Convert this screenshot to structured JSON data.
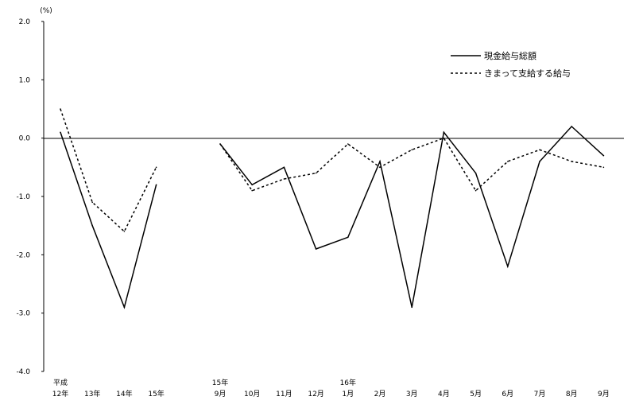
{
  "chart_data": {
    "type": "line",
    "unit_label": "(%)",
    "ylim": [
      -4.0,
      2.0
    ],
    "yticks": [
      "2.0",
      "1.0",
      "0.0",
      "-1.0",
      "-2.0",
      "-3.0",
      "-4.0"
    ],
    "ytick_values": [
      2.0,
      1.0,
      0.0,
      -1.0,
      -2.0,
      -3.0,
      -4.0
    ],
    "grid": false,
    "zero_line": true,
    "legend_position": "top-right",
    "categories": [
      {
        "top": "平成",
        "bottom": "12年"
      },
      {
        "top": "",
        "bottom": "13年"
      },
      {
        "top": "",
        "bottom": "14年"
      },
      {
        "top": "",
        "bottom": "15年"
      },
      {
        "top": "",
        "bottom": ""
      },
      {
        "top": "15年",
        "bottom": "9月"
      },
      {
        "top": "",
        "bottom": "10月"
      },
      {
        "top": "",
        "bottom": "11月"
      },
      {
        "top": "",
        "bottom": "12月"
      },
      {
        "top": "16年",
        "bottom": "1月"
      },
      {
        "top": "",
        "bottom": "2月"
      },
      {
        "top": "",
        "bottom": "3月"
      },
      {
        "top": "",
        "bottom": "4月"
      },
      {
        "top": "",
        "bottom": "5月"
      },
      {
        "top": "",
        "bottom": "6月"
      },
      {
        "top": "",
        "bottom": "7月"
      },
      {
        "top": "",
        "bottom": "8月"
      },
      {
        "top": "",
        "bottom": "9月"
      }
    ],
    "series": [
      {
        "name": "現金給与総額",
        "style": "solid",
        "color": "#000000",
        "values": [
          0.1,
          -1.5,
          -2.9,
          -0.8,
          null,
          -0.1,
          -0.8,
          -0.5,
          -1.9,
          -1.7,
          -0.4,
          -2.9,
          0.1,
          -0.6,
          -2.2,
          -0.4,
          0.2,
          -0.3
        ]
      },
      {
        "name": "きまって支給する給与",
        "style": "dotted",
        "color": "#000000",
        "values": [
          0.5,
          -1.1,
          -1.6,
          -0.5,
          null,
          -0.1,
          -0.9,
          -0.7,
          -0.6,
          -0.1,
          -0.5,
          -0.2,
          0.0,
          -0.9,
          -0.4,
          -0.2,
          -0.4,
          -0.5
        ]
      }
    ]
  }
}
